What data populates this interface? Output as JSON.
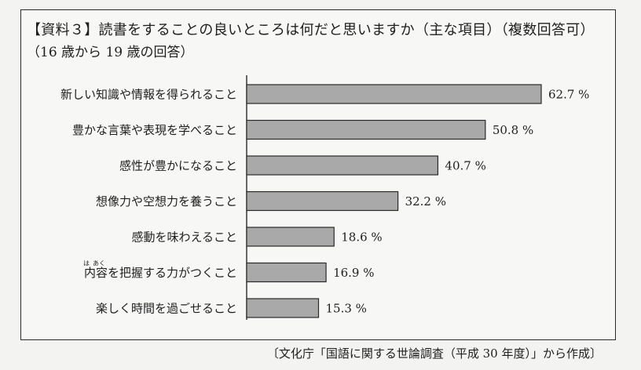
{
  "title": "【資料３】読書をすることの良いところは何だと思いますか（主な項目）（複数回答可）",
  "subtitle": "（16 歳から 19 歳の回答）",
  "source": "〔文化庁「国語に関する世論調査（平成 30 年度）」から作成〕",
  "colors": {
    "bar": "#a9a9a9",
    "bar_stroke": "#2a2a2a",
    "axis": "#2a2a2a"
  },
  "chart_data": {
    "type": "bar",
    "orientation": "horizontal",
    "categories": [
      "新しい知識や情報を得られること",
      "豊かな言葉や表現を学べること",
      "感性が豊かになること",
      "想像力や空想力を養うこと",
      "感動を味わえること",
      "内容を把握する力がつくこと",
      "楽しく時間を過ごせること"
    ],
    "values": [
      62.7,
      50.8,
      40.7,
      32.2,
      18.6,
      16.9,
      15.3
    ],
    "value_labels": [
      "62.7 %",
      "50.8 %",
      "40.7 %",
      "32.2 %",
      "18.6 %",
      "16.9 %",
      "15.3 %"
    ],
    "ruby": {
      "category_index": 5,
      "chars": [
        "は",
        "あく"
      ]
    },
    "xlim": [
      0,
      70
    ],
    "grid": false,
    "legend": "none"
  }
}
